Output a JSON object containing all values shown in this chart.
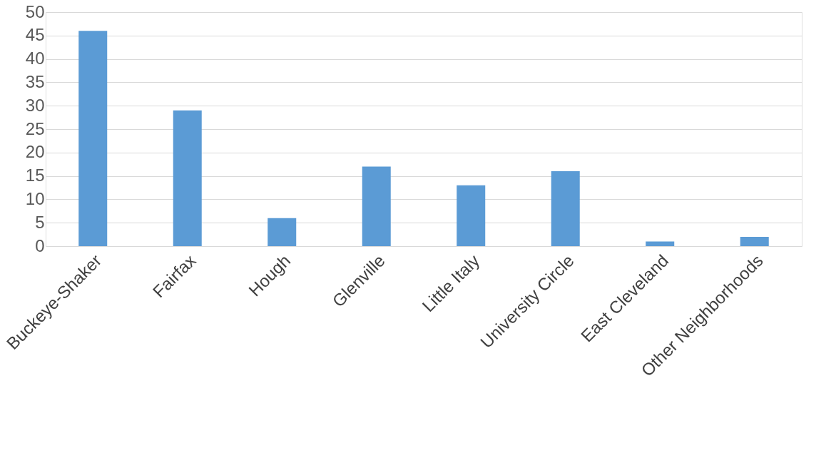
{
  "chart_data": {
    "type": "bar",
    "categories": [
      "Buckeye-Shaker",
      "Fairfax",
      "Hough",
      "Glenville",
      "Little Italy",
      "University Circle",
      "East Cleveland",
      "Other Neighborhoods"
    ],
    "values": [
      46,
      29,
      6,
      17,
      13,
      16,
      1,
      2
    ],
    "color": "#5b9bd5",
    "ylim": [
      0,
      50
    ],
    "yticks": [
      0,
      5,
      10,
      15,
      20,
      25,
      30,
      35,
      40,
      45,
      50
    ],
    "grid": "y"
  }
}
